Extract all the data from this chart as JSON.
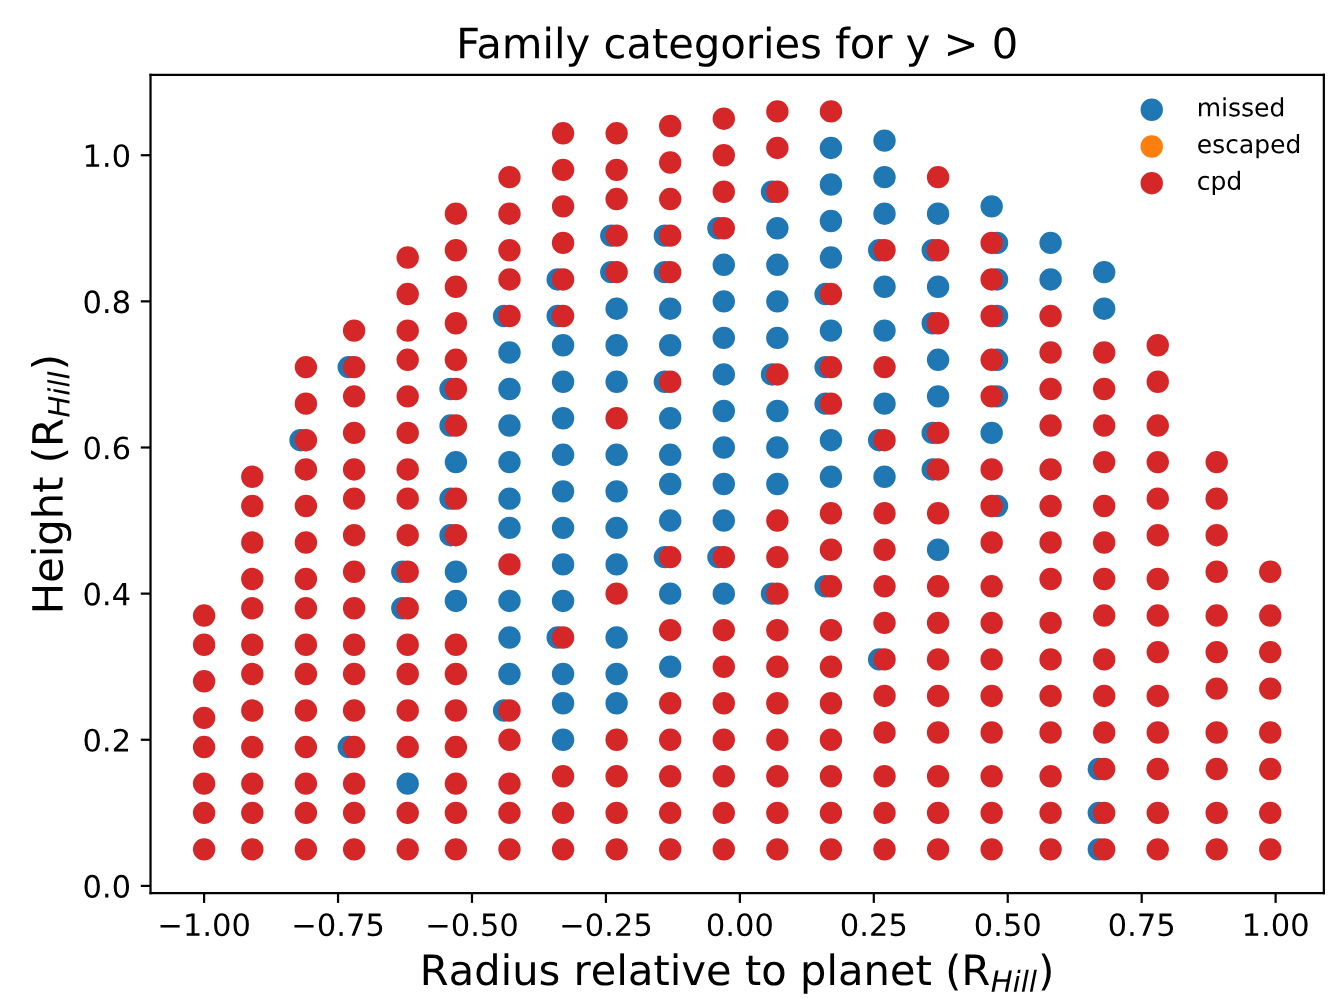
{
  "chart_data": {
    "type": "scatter",
    "title": "Family categories for y > 0",
    "xlabel": "Radius relative to planet (R$_{Hill}$)",
    "ylabel": "Height (R$_{Hill}$)",
    "xlim": [
      -1.1,
      1.09
    ],
    "ylim": [
      -0.01,
      1.11
    ],
    "xticks": [
      {
        "value": -1.0,
        "label": "−1.00"
      },
      {
        "value": -0.75,
        "label": "−0.75"
      },
      {
        "value": -0.5,
        "label": "−0.50"
      },
      {
        "value": -0.25,
        "label": "−0.25"
      },
      {
        "value": 0,
        "label": "0.00"
      },
      {
        "value": 0.25,
        "label": "0.25"
      },
      {
        "value": 0.5,
        "label": "0.50"
      },
      {
        "value": 0.75,
        "label": "0.75"
      },
      {
        "value": 1.0,
        "label": "1.00"
      }
    ],
    "yticks": [
      {
        "value": 0,
        "label": "0.0"
      },
      {
        "value": 0.2,
        "label": "0.2"
      },
      {
        "value": 0.4,
        "label": "0.4"
      },
      {
        "value": 0.6,
        "label": "0.6"
      },
      {
        "value": 0.8,
        "label": "0.8"
      },
      {
        "value": 1.0,
        "label": "1.0"
      }
    ],
    "grid": false,
    "legend": "top right",
    "marker": "circle",
    "series": [
      {
        "name": "missed",
        "color": "#1f77b4",
        "x": [
          -0.82,
          -0.73,
          -0.73,
          -0.62,
          -0.63,
          -0.63,
          -0.53,
          -0.53,
          -0.53,
          -0.54,
          -0.54,
          -0.54,
          -0.54,
          -0.43,
          -0.43,
          -0.43,
          -0.43,
          -0.43,
          -0.43,
          -0.43,
          -0.43,
          -0.43,
          -0.44,
          -0.44,
          -0.33,
          -0.33,
          -0.33,
          -0.33,
          -0.33,
          -0.33,
          -0.33,
          -0.33,
          -0.33,
          -0.33,
          -0.33,
          -0.34,
          -0.34,
          -0.34,
          -0.23,
          -0.23,
          -0.23,
          -0.23,
          -0.23,
          -0.23,
          -0.23,
          -0.23,
          -0.23,
          -0.23,
          -0.24,
          -0.24,
          -0.13,
          -0.13,
          -0.13,
          -0.13,
          -0.13,
          -0.13,
          -0.13,
          -0.13,
          -0.14,
          -0.14,
          -0.14,
          -0.14,
          -0.03,
          -0.03,
          -0.03,
          -0.03,
          -0.03,
          -0.03,
          -0.03,
          -0.03,
          -0.03,
          -0.04,
          -0.04,
          0.07,
          0.07,
          0.07,
          0.07,
          0.07,
          0.07,
          0.07,
          0.06,
          0.06,
          0.06,
          0.17,
          0.17,
          0.17,
          0.17,
          0.17,
          0.17,
          0.17,
          0.16,
          0.16,
          0.16,
          0.16,
          0.27,
          0.27,
          0.27,
          0.27,
          0.27,
          0.27,
          0.27,
          0.26,
          0.26,
          0.26,
          0.37,
          0.37,
          0.37,
          0.37,
          0.37,
          0.36,
          0.36,
          0.36,
          0.36,
          0.47,
          0.47,
          0.48,
          0.48,
          0.48,
          0.48,
          0.48,
          0.48,
          0.58,
          0.58,
          0.68,
          0.68,
          0.67,
          0.67,
          0.67
        ],
        "values": [
          0.61,
          0.19,
          0.71,
          0.14,
          0.38,
          0.43,
          0.39,
          0.43,
          0.58,
          0.48,
          0.53,
          0.63,
          0.68,
          0.29,
          0.34,
          0.39,
          0.49,
          0.53,
          0.58,
          0.63,
          0.68,
          0.73,
          0.24,
          0.78,
          0.2,
          0.25,
          0.29,
          0.39,
          0.44,
          0.49,
          0.54,
          0.59,
          0.64,
          0.69,
          0.74,
          0.34,
          0.78,
          0.83,
          0.25,
          0.29,
          0.34,
          0.44,
          0.49,
          0.54,
          0.59,
          0.69,
          0.74,
          0.79,
          0.84,
          0.89,
          0.3,
          0.4,
          0.5,
          0.55,
          0.59,
          0.64,
          0.74,
          0.79,
          0.45,
          0.69,
          0.84,
          0.89,
          0.4,
          0.5,
          0.55,
          0.6,
          0.65,
          0.7,
          0.75,
          0.8,
          0.85,
          0.45,
          0.9,
          0.55,
          0.6,
          0.65,
          0.75,
          0.8,
          0.85,
          0.9,
          0.4,
          0.7,
          0.95,
          0.56,
          0.61,
          0.76,
          0.86,
          0.91,
          0.96,
          1.01,
          0.41,
          0.66,
          0.71,
          0.81,
          0.56,
          0.66,
          0.76,
          0.82,
          0.92,
          0.97,
          1.02,
          0.31,
          0.61,
          0.87,
          0.46,
          0.67,
          0.72,
          0.82,
          0.92,
          0.57,
          0.62,
          0.77,
          0.87,
          0.62,
          0.93,
          0.52,
          0.67,
          0.72,
          0.78,
          0.83,
          0.88,
          0.83,
          0.88,
          0.79,
          0.84,
          0.05,
          0.1,
          0.16
        ]
      },
      {
        "name": "escaped",
        "color": "#ff7f0e"
      },
      {
        "name": "cpd",
        "color": "#d62728",
        "x": [
          -1.0,
          -1.0,
          -1.0,
          -1.0,
          -1.0,
          -1.0,
          -1.0,
          -1.0,
          -0.91,
          -0.91,
          -0.91,
          -0.91,
          -0.91,
          -0.91,
          -0.91,
          -0.91,
          -0.91,
          -0.91,
          -0.91,
          -0.91,
          -0.81,
          -0.81,
          -0.81,
          -0.81,
          -0.81,
          -0.81,
          -0.81,
          -0.81,
          -0.81,
          -0.81,
          -0.81,
          -0.81,
          -0.81,
          -0.81,
          -0.81,
          -0.72,
          -0.72,
          -0.72,
          -0.72,
          -0.72,
          -0.72,
          -0.72,
          -0.72,
          -0.72,
          -0.72,
          -0.72,
          -0.72,
          -0.72,
          -0.72,
          -0.72,
          -0.72,
          -0.62,
          -0.62,
          -0.62,
          -0.62,
          -0.62,
          -0.62,
          -0.62,
          -0.62,
          -0.62,
          -0.62,
          -0.62,
          -0.62,
          -0.62,
          -0.62,
          -0.62,
          -0.62,
          -0.62,
          -0.53,
          -0.53,
          -0.53,
          -0.53,
          -0.53,
          -0.53,
          -0.53,
          -0.53,
          -0.53,
          -0.53,
          -0.53,
          -0.53,
          -0.53,
          -0.53,
          -0.53,
          -0.53,
          -0.43,
          -0.43,
          -0.43,
          -0.43,
          -0.43,
          -0.43,
          -0.43,
          -0.43,
          -0.43,
          -0.43,
          -0.43,
          -0.33,
          -0.33,
          -0.33,
          -0.33,
          -0.33,
          -0.33,
          -0.33,
          -0.33,
          -0.33,
          -0.33,
          -0.23,
          -0.23,
          -0.23,
          -0.23,
          -0.23,
          -0.23,
          -0.23,
          -0.23,
          -0.23,
          -0.23,
          -0.23,
          -0.13,
          -0.13,
          -0.13,
          -0.13,
          -0.13,
          -0.13,
          -0.13,
          -0.13,
          -0.13,
          -0.13,
          -0.13,
          -0.13,
          -0.13,
          -0.03,
          -0.03,
          -0.03,
          -0.03,
          -0.03,
          -0.03,
          -0.03,
          -0.03,
          -0.03,
          -0.03,
          -0.03,
          -0.03,
          0.07,
          0.07,
          0.07,
          0.07,
          0.07,
          0.07,
          0.07,
          0.07,
          0.07,
          0.07,
          0.07,
          0.07,
          0.07,
          0.07,
          0.17,
          0.17,
          0.17,
          0.17,
          0.17,
          0.17,
          0.17,
          0.17,
          0.17,
          0.17,
          0.17,
          0.17,
          0.17,
          0.17,
          0.27,
          0.27,
          0.27,
          0.27,
          0.27,
          0.27,
          0.27,
          0.27,
          0.27,
          0.27,
          0.27,
          0.27,
          0.27,
          0.37,
          0.37,
          0.37,
          0.37,
          0.37,
          0.37,
          0.37,
          0.37,
          0.37,
          0.37,
          0.37,
          0.37,
          0.37,
          0.37,
          0.47,
          0.47,
          0.47,
          0.47,
          0.47,
          0.47,
          0.47,
          0.47,
          0.47,
          0.47,
          0.47,
          0.47,
          0.47,
          0.47,
          0.47,
          0.47,
          0.58,
          0.58,
          0.58,
          0.58,
          0.58,
          0.58,
          0.58,
          0.58,
          0.58,
          0.58,
          0.58,
          0.58,
          0.58,
          0.58,
          0.58,
          0.68,
          0.68,
          0.68,
          0.68,
          0.68,
          0.68,
          0.68,
          0.68,
          0.68,
          0.68,
          0.68,
          0.68,
          0.68,
          0.68,
          0.78,
          0.78,
          0.78,
          0.78,
          0.78,
          0.78,
          0.78,
          0.78,
          0.78,
          0.78,
          0.78,
          0.78,
          0.78,
          0.78,
          0.89,
          0.89,
          0.89,
          0.89,
          0.89,
          0.89,
          0.89,
          0.89,
          0.89,
          0.89,
          0.89,
          0.99,
          0.99,
          0.99,
          0.99,
          0.99,
          0.99,
          0.99,
          0.99
        ],
        "values": [
          0.05,
          0.1,
          0.14,
          0.19,
          0.23,
          0.28,
          0.33,
          0.37,
          0.05,
          0.1,
          0.14,
          0.19,
          0.24,
          0.29,
          0.33,
          0.38,
          0.42,
          0.47,
          0.52,
          0.56,
          0.05,
          0.1,
          0.14,
          0.19,
          0.24,
          0.29,
          0.33,
          0.38,
          0.42,
          0.47,
          0.52,
          0.57,
          0.61,
          0.66,
          0.71,
          0.05,
          0.1,
          0.14,
          0.19,
          0.24,
          0.29,
          0.33,
          0.38,
          0.43,
          0.48,
          0.53,
          0.57,
          0.62,
          0.67,
          0.71,
          0.76,
          0.05,
          0.1,
          0.19,
          0.24,
          0.29,
          0.33,
          0.38,
          0.43,
          0.48,
          0.53,
          0.57,
          0.62,
          0.67,
          0.72,
          0.76,
          0.81,
          0.86,
          0.05,
          0.1,
          0.14,
          0.19,
          0.24,
          0.29,
          0.33,
          0.48,
          0.53,
          0.63,
          0.68,
          0.72,
          0.77,
          0.82,
          0.87,
          0.92,
          0.05,
          0.1,
          0.14,
          0.2,
          0.24,
          0.44,
          0.78,
          0.83,
          0.87,
          0.92,
          0.97,
          0.05,
          0.1,
          0.15,
          0.34,
          0.78,
          0.83,
          0.88,
          0.93,
          0.98,
          1.03,
          0.05,
          0.1,
          0.15,
          0.2,
          0.4,
          0.64,
          0.84,
          0.89,
          0.94,
          0.98,
          1.03,
          0.05,
          0.1,
          0.15,
          0.2,
          0.25,
          0.35,
          0.45,
          0.69,
          0.84,
          0.89,
          0.94,
          0.99,
          1.04,
          0.05,
          0.1,
          0.15,
          0.2,
          0.25,
          0.3,
          0.35,
          0.45,
          0.9,
          0.95,
          1.0,
          1.05,
          0.05,
          0.1,
          0.15,
          0.2,
          0.25,
          0.3,
          0.35,
          0.4,
          0.45,
          0.5,
          0.7,
          0.95,
          1.01,
          1.06,
          0.05,
          0.1,
          0.15,
          0.2,
          0.25,
          0.3,
          0.35,
          0.41,
          0.46,
          0.51,
          0.66,
          0.71,
          0.81,
          1.06,
          0.05,
          0.1,
          0.15,
          0.21,
          0.26,
          0.31,
          0.36,
          0.41,
          0.46,
          0.51,
          0.61,
          0.71,
          0.87,
          0.05,
          0.1,
          0.15,
          0.21,
          0.26,
          0.31,
          0.36,
          0.41,
          0.51,
          0.57,
          0.62,
          0.77,
          0.87,
          0.97,
          0.05,
          0.1,
          0.15,
          0.21,
          0.26,
          0.31,
          0.36,
          0.41,
          0.47,
          0.52,
          0.57,
          0.67,
          0.72,
          0.78,
          0.83,
          0.88,
          0.05,
          0.1,
          0.15,
          0.21,
          0.26,
          0.31,
          0.36,
          0.42,
          0.47,
          0.52,
          0.57,
          0.63,
          0.68,
          0.73,
          0.78,
          0.05,
          0.1,
          0.16,
          0.21,
          0.26,
          0.31,
          0.37,
          0.42,
          0.47,
          0.52,
          0.58,
          0.63,
          0.68,
          0.73,
          0.05,
          0.1,
          0.16,
          0.21,
          0.26,
          0.32,
          0.37,
          0.42,
          0.48,
          0.53,
          0.58,
          0.63,
          0.69,
          0.74,
          0.05,
          0.1,
          0.16,
          0.21,
          0.27,
          0.32,
          0.37,
          0.43,
          0.48,
          0.53,
          0.58,
          0.05,
          0.1,
          0.16,
          0.21,
          0.27,
          0.32,
          0.37,
          0.43
        ]
      }
    ]
  }
}
